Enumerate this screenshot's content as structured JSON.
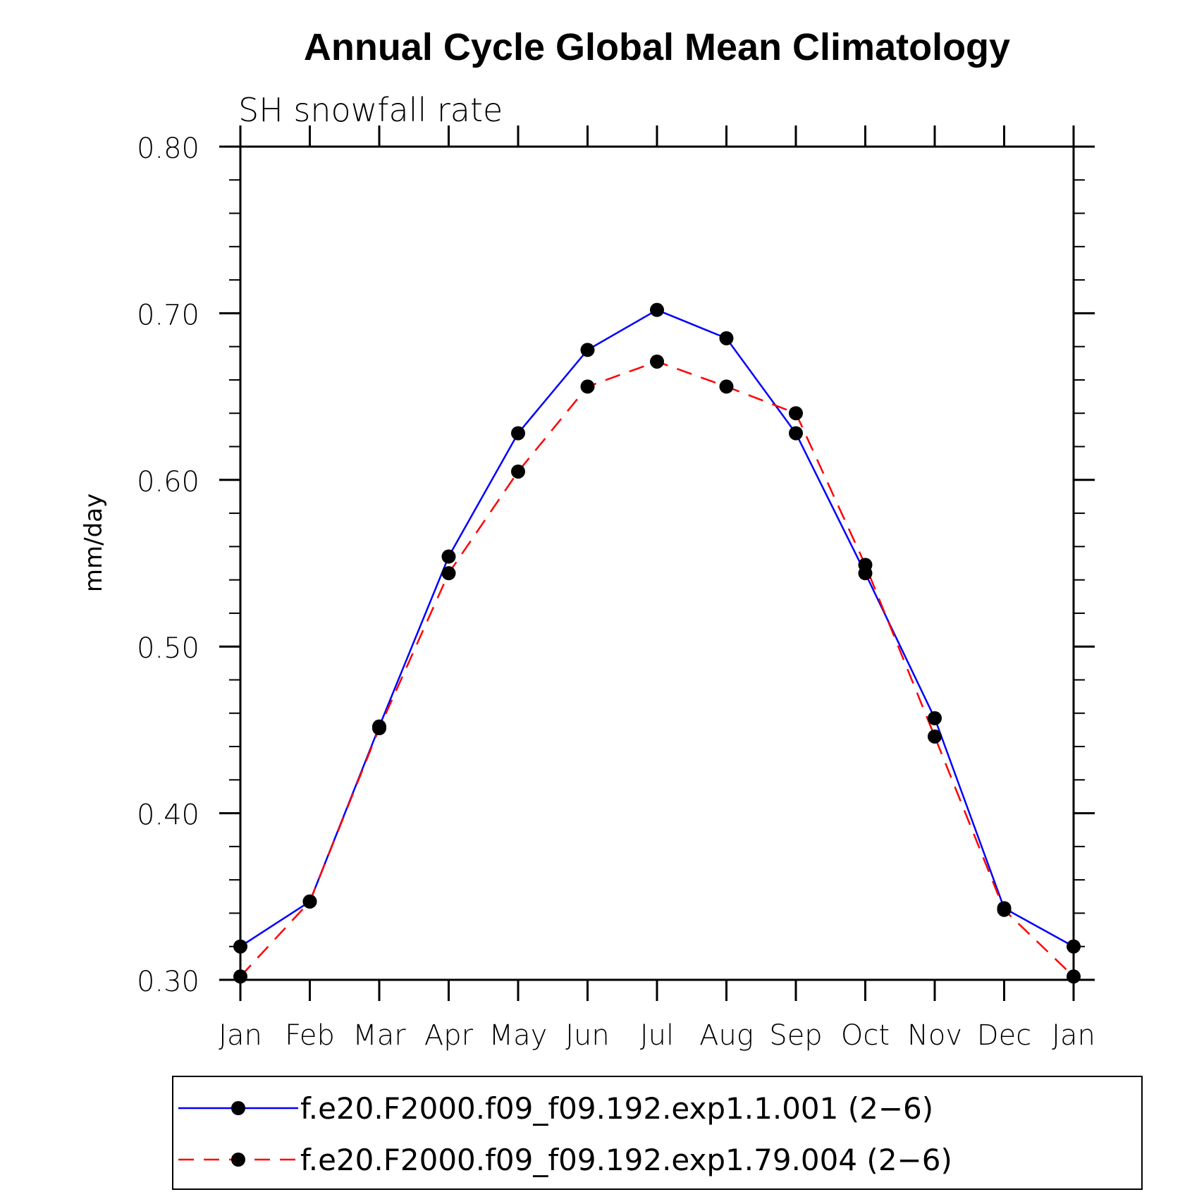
{
  "chart_data": {
    "type": "line",
    "title": "Annual Cycle Global Mean Climatology",
    "subtitle": "SH snowfall rate",
    "ylabel": "mm/day",
    "xlabel": "",
    "ylim": [
      0.3,
      0.8
    ],
    "yticks": [
      0.3,
      0.4,
      0.5,
      0.6,
      0.7,
      0.8
    ],
    "ytick_labels": [
      "0.30",
      "0.40",
      "0.50",
      "0.60",
      "0.70",
      "0.80"
    ],
    "categories": [
      "Jan",
      "Feb",
      "Mar",
      "Apr",
      "May",
      "Jun",
      "Jul",
      "Aug",
      "Sep",
      "Oct",
      "Nov",
      "Dec",
      "Jan"
    ],
    "legend_position": "bottom",
    "series": [
      {
        "name": "f.e20.F2000.f09_f09.192.exp1.1.001 (2−6)",
        "color": "#0000ff",
        "style": "solid",
        "values": [
          0.32,
          0.347,
          0.452,
          0.554,
          0.628,
          0.678,
          0.702,
          0.685,
          0.628,
          0.544,
          0.457,
          0.343,
          0.32
        ]
      },
      {
        "name": "f.e20.F2000.f09_f09.192.exp1.79.004 (2−6)",
        "color": "#ff0000",
        "style": "dashed",
        "values": [
          0.302,
          0.347,
          0.451,
          0.544,
          0.605,
          0.656,
          0.671,
          0.656,
          0.64,
          0.549,
          0.446,
          0.342,
          0.302
        ]
      }
    ]
  }
}
